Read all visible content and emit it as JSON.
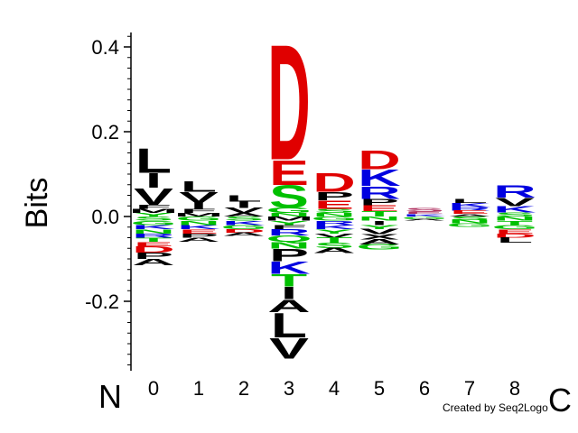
{
  "chart_data": {
    "type": "sequence-logo",
    "title": "",
    "xlabel": "",
    "ylabel": "Bits",
    "ylim": [
      -0.4,
      0.45
    ],
    "yticks": [
      "0.4",
      "0.2",
      "0.0",
      "-0.2"
    ],
    "ytick_values": [
      0.4,
      0.2,
      0.0,
      -0.2
    ],
    "positions": [
      "0",
      "1",
      "2",
      "3",
      "4",
      "5",
      "6",
      "7",
      "8"
    ],
    "n_terminus_label": "N",
    "c_terminus_label": "C",
    "credit": "Created by Seq2Logo",
    "colors": {
      "acidic": "#e00000",
      "basic": "#0000e0",
      "polar": "#00c000",
      "hydrophobic": "#000000",
      "other": "#b03060"
    },
    "columns": [
      {
        "position": "0",
        "positive": [
          {
            "letter": "L",
            "bits": 0.06,
            "color": "#000000"
          },
          {
            "letter": "I",
            "bits": 0.035,
            "color": "#000000"
          },
          {
            "letter": "V",
            "bits": 0.04,
            "color": "#000000"
          },
          {
            "letter": "F",
            "bits": 0.01,
            "color": "#000000"
          },
          {
            "letter": "M",
            "bits": 0.01,
            "color": "#000000"
          },
          {
            "letter": "Y",
            "bits": 0.008,
            "color": "#00c000"
          }
        ],
        "negative": [
          {
            "letter": "S",
            "bits": 0.01,
            "color": "#00c000"
          },
          {
            "letter": "G",
            "bits": 0.01,
            "color": "#00c000"
          },
          {
            "letter": "K",
            "bits": 0.01,
            "color": "#0000e0"
          },
          {
            "letter": "N",
            "bits": 0.01,
            "color": "#00c000"
          },
          {
            "letter": "R",
            "bits": 0.01,
            "color": "#0000e0"
          },
          {
            "letter": "T",
            "bits": 0.01,
            "color": "#00c000"
          },
          {
            "letter": "E",
            "bits": 0.01,
            "color": "#e00000"
          },
          {
            "letter": "D",
            "bits": 0.015,
            "color": "#e00000"
          },
          {
            "letter": "P",
            "bits": 0.015,
            "color": "#000000"
          },
          {
            "letter": "A",
            "bits": 0.015,
            "color": "#000000"
          }
        ]
      },
      {
        "position": "1",
        "positive": [
          {
            "letter": "L",
            "bits": 0.025,
            "color": "#000000"
          },
          {
            "letter": "V",
            "bits": 0.025,
            "color": "#000000"
          },
          {
            "letter": "I",
            "bits": 0.015,
            "color": "#000000"
          },
          {
            "letter": "F",
            "bits": 0.01,
            "color": "#000000"
          },
          {
            "letter": "M",
            "bits": 0.008,
            "color": "#000000"
          }
        ],
        "negative": [
          {
            "letter": "G",
            "bits": 0.01,
            "color": "#00c000"
          },
          {
            "letter": "N",
            "bits": 0.01,
            "color": "#00c000"
          },
          {
            "letter": "K",
            "bits": 0.01,
            "color": "#0000e0"
          },
          {
            "letter": "E",
            "bits": 0.01,
            "color": "#e00000"
          },
          {
            "letter": "P",
            "bits": 0.01,
            "color": "#000000"
          },
          {
            "letter": "A",
            "bits": 0.01,
            "color": "#000000"
          }
        ]
      },
      {
        "position": "2",
        "positive": [
          {
            "letter": "L",
            "bits": 0.015,
            "color": "#000000"
          },
          {
            "letter": "I",
            "bits": 0.015,
            "color": "#000000"
          },
          {
            "letter": "V",
            "bits": 0.012,
            "color": "#000000"
          },
          {
            "letter": "A",
            "bits": 0.008,
            "color": "#000000"
          }
        ],
        "negative": [
          {
            "letter": "S",
            "bits": 0.01,
            "color": "#00c000"
          },
          {
            "letter": "K",
            "bits": 0.01,
            "color": "#0000e0"
          },
          {
            "letter": "G",
            "bits": 0.01,
            "color": "#00c000"
          },
          {
            "letter": "D",
            "bits": 0.008,
            "color": "#e00000"
          },
          {
            "letter": "A",
            "bits": 0.008,
            "color": "#000000"
          }
        ]
      },
      {
        "position": "3",
        "positive": [
          {
            "letter": "D",
            "bits": 0.28,
            "color": "#e00000"
          },
          {
            "letter": "E",
            "bits": 0.06,
            "color": "#e00000"
          },
          {
            "letter": "S",
            "bits": 0.055,
            "color": "#00c000"
          },
          {
            "letter": "G",
            "bits": 0.012,
            "color": "#00c000"
          },
          {
            "letter": "N",
            "bits": 0.008,
            "color": "#00c000"
          }
        ],
        "negative": [
          {
            "letter": "M",
            "bits": 0.01,
            "color": "#000000"
          },
          {
            "letter": "Y",
            "bits": 0.01,
            "color": "#00c000"
          },
          {
            "letter": "F",
            "bits": 0.01,
            "color": "#000000"
          },
          {
            "letter": "R",
            "bits": 0.015,
            "color": "#0000e0"
          },
          {
            "letter": "Q",
            "bits": 0.015,
            "color": "#00c000"
          },
          {
            "letter": "N",
            "bits": 0.015,
            "color": "#00c000"
          },
          {
            "letter": "P",
            "bits": 0.03,
            "color": "#000000"
          },
          {
            "letter": "K",
            "bits": 0.03,
            "color": "#0000e0"
          },
          {
            "letter": "T",
            "bits": 0.03,
            "color": "#00c000"
          },
          {
            "letter": "I",
            "bits": 0.03,
            "color": "#000000"
          },
          {
            "letter": "A",
            "bits": 0.03,
            "color": "#000000"
          },
          {
            "letter": "L",
            "bits": 0.06,
            "color": "#000000"
          },
          {
            "letter": "V",
            "bits": 0.05,
            "color": "#000000"
          }
        ]
      },
      {
        "position": "4",
        "positive": [
          {
            "letter": "D",
            "bits": 0.045,
            "color": "#e00000"
          },
          {
            "letter": "P",
            "bits": 0.02,
            "color": "#000000"
          },
          {
            "letter": "E",
            "bits": 0.02,
            "color": "#e00000"
          },
          {
            "letter": "S",
            "bits": 0.01,
            "color": "#00c000"
          },
          {
            "letter": "N",
            "bits": 0.008,
            "color": "#00c000"
          }
        ],
        "negative": [
          {
            "letter": "G",
            "bits": 0.01,
            "color": "#00c000"
          },
          {
            "letter": "R",
            "bits": 0.01,
            "color": "#0000e0"
          },
          {
            "letter": "K",
            "bits": 0.01,
            "color": "#0000e0"
          },
          {
            "letter": "Y",
            "bits": 0.01,
            "color": "#00c000"
          },
          {
            "letter": "V",
            "bits": 0.01,
            "color": "#000000"
          },
          {
            "letter": "T",
            "bits": 0.012,
            "color": "#00c000"
          },
          {
            "letter": "S",
            "bits": 0.012,
            "color": "#00c000"
          },
          {
            "letter": "A",
            "bits": 0.012,
            "color": "#000000"
          }
        ]
      },
      {
        "position": "5",
        "positive": [
          {
            "letter": "D",
            "bits": 0.045,
            "color": "#e00000"
          },
          {
            "letter": "K",
            "bits": 0.04,
            "color": "#0000e0"
          },
          {
            "letter": "R",
            "bits": 0.03,
            "color": "#0000e0"
          },
          {
            "letter": "P",
            "bits": 0.015,
            "color": "#000000"
          },
          {
            "letter": "E",
            "bits": 0.015,
            "color": "#e00000"
          },
          {
            "letter": "T",
            "bits": 0.012,
            "color": "#00c000"
          }
        ],
        "negative": [
          {
            "letter": "N",
            "bits": 0.01,
            "color": "#00c000"
          },
          {
            "letter": "I",
            "bits": 0.01,
            "color": "#000000"
          },
          {
            "letter": "Y",
            "bits": 0.01,
            "color": "#00c000"
          },
          {
            "letter": "V",
            "bits": 0.012,
            "color": "#000000"
          },
          {
            "letter": "X",
            "bits": 0.012,
            "color": "#000000"
          },
          {
            "letter": "A",
            "bits": 0.012,
            "color": "#000000"
          },
          {
            "letter": "G",
            "bits": 0.012,
            "color": "#00c000"
          }
        ]
      },
      {
        "position": "6",
        "positive": [
          {
            "letter": "S",
            "bits": 0.008,
            "color": "#b03060"
          },
          {
            "letter": "E",
            "bits": 0.006,
            "color": "#b03060"
          },
          {
            "letter": "K",
            "bits": 0.006,
            "color": "#0000e0"
          }
        ],
        "negative": [
          {
            "letter": "G",
            "bits": 0.006,
            "color": "#00c000"
          },
          {
            "letter": "A",
            "bits": 0.004,
            "color": "#000000"
          }
        ]
      },
      {
        "position": "7",
        "positive": [
          {
            "letter": "L",
            "bits": 0.01,
            "color": "#000000"
          },
          {
            "letter": "K",
            "bits": 0.01,
            "color": "#0000e0"
          },
          {
            "letter": "R",
            "bits": 0.008,
            "color": "#0000e0"
          },
          {
            "letter": "E",
            "bits": 0.008,
            "color": "#e00000"
          },
          {
            "letter": "A",
            "bits": 0.006,
            "color": "#000000"
          }
        ],
        "negative": [
          {
            "letter": "S",
            "bits": 0.008,
            "color": "#00c000"
          },
          {
            "letter": "N",
            "bits": 0.008,
            "color": "#00c000"
          },
          {
            "letter": "G",
            "bits": 0.008,
            "color": "#00c000"
          }
        ]
      },
      {
        "position": "8",
        "positive": [
          {
            "letter": "R",
            "bits": 0.03,
            "color": "#0000e0"
          },
          {
            "letter": "V",
            "bits": 0.02,
            "color": "#000000"
          },
          {
            "letter": "K",
            "bits": 0.015,
            "color": "#0000e0"
          },
          {
            "letter": "S",
            "bits": 0.01,
            "color": "#00c000"
          }
        ],
        "negative": [
          {
            "letter": "N",
            "bits": 0.01,
            "color": "#00c000"
          },
          {
            "letter": "T",
            "bits": 0.01,
            "color": "#00c000"
          },
          {
            "letter": "G",
            "bits": 0.01,
            "color": "#00c000"
          },
          {
            "letter": "E",
            "bits": 0.01,
            "color": "#e00000"
          },
          {
            "letter": "D",
            "bits": 0.01,
            "color": "#e00000"
          },
          {
            "letter": "L",
            "bits": 0.012,
            "color": "#000000"
          }
        ]
      }
    ]
  }
}
